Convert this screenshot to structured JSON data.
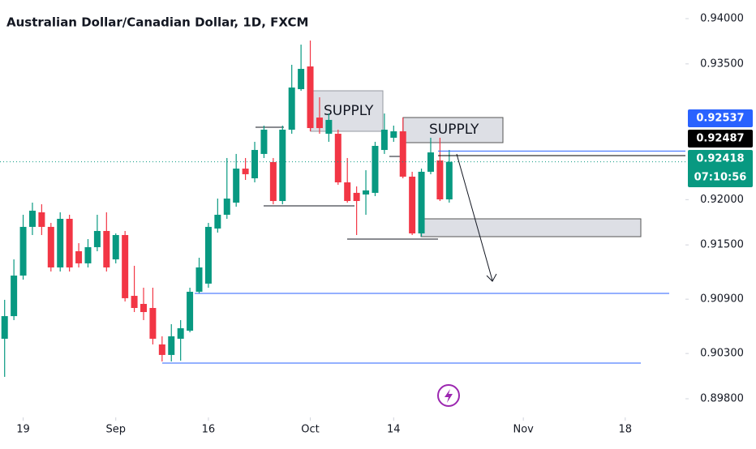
{
  "chart_data": {
    "type": "candlestick",
    "title": "Australian Dollar/Canadian Dollar, 1D, FXCM",
    "up_color": "#089981",
    "down_color": "#f23645",
    "open": [
      0.90463,
      0.90713,
      0.91161,
      0.91699,
      0.9186,
      0.91699,
      0.91251,
      0.91788,
      0.9143,
      0.91296,
      0.91475,
      0.91654,
      0.9134,
      0.91609,
      0.90937,
      0.90848,
      0.90803,
      0.904,
      0.90284,
      0.90463,
      0.90552,
      0.90982,
      0.91072,
      0.91681,
      0.91833,
      0.91967,
      0.92343,
      0.92236,
      0.92505,
      0.92415,
      0.91985,
      0.92773,
      0.93221,
      0.93472,
      0.92907,
      0.92728,
      0.92728,
      0.92191,
      0.92075,
      0.92057,
      0.92075,
      0.92549,
      0.92684,
      0.92755,
      0.92254,
      0.91627,
      0.92308,
      0.92433,
      0.92003
    ],
    "high": [
      0.90893,
      0.9134,
      0.91833,
      0.91967,
      0.91949,
      0.91743,
      0.9186,
      0.91833,
      0.91519,
      0.91564,
      0.91833,
      0.9186,
      0.91627,
      0.91654,
      0.91269,
      0.91027,
      0.91027,
      0.9049,
      0.90624,
      0.90669,
      0.91027,
      0.91358,
      0.91743,
      0.92012,
      0.9246,
      0.92505,
      0.9246,
      0.92639,
      0.92818,
      0.9246,
      0.92818,
      0.9349,
      0.93713,
      0.93758,
      0.93131,
      0.92952,
      0.92773,
      0.9246,
      0.92146,
      0.92325,
      0.92639,
      0.92952,
      0.92818,
      0.92907,
      0.92308,
      0.92343,
      0.92684,
      0.92684,
      0.92549
    ],
    "low": [
      0.90042,
      0.90669,
      0.91116,
      0.91609,
      0.91609,
      0.91206,
      0.91206,
      0.91206,
      0.91251,
      0.91251,
      0.9143,
      0.91206,
      0.91296,
      0.90875,
      0.90758,
      0.90669,
      0.904,
      0.90212,
      0.90212,
      0.90221,
      0.90534,
      0.90964,
      0.91027,
      0.91636,
      0.91788,
      0.91922,
      0.92218,
      0.92191,
      0.9246,
      0.91949,
      0.91949,
      0.92728,
      0.93203,
      0.92755,
      0.92728,
      0.92639,
      0.92164,
      0.91967,
      0.91609,
      0.91833,
      0.92039,
      0.92505,
      0.92639,
      0.92236,
      0.91609,
      0.91591,
      0.92281,
      0.91985,
      0.91967
    ],
    "close": [
      0.90713,
      0.91161,
      0.91699,
      0.91878,
      0.91699,
      0.91251,
      0.91788,
      0.91251,
      0.91296,
      0.91475,
      0.91654,
      0.91251,
      0.91609,
      0.90911,
      0.90803,
      0.90758,
      0.90463,
      0.90284,
      0.9049,
      0.90579,
      0.90982,
      0.91251,
      0.91699,
      0.91833,
      0.92012,
      0.92343,
      0.92281,
      0.92549,
      0.92773,
      0.91985,
      0.92773,
      0.93239,
      0.93445,
      0.92791,
      0.92791,
      0.92881,
      0.92191,
      0.91985,
      0.91985,
      0.92102,
      0.92594,
      0.92773,
      0.92755,
      0.92254,
      0.91627,
      0.92308,
      0.92522,
      0.92003,
      0.92418
    ],
    "xlim": [
      -0.5,
      73.5
    ],
    "xticks": [
      {
        "value": 2,
        "label": "19"
      },
      {
        "value": 12,
        "label": "Sep"
      },
      {
        "value": 22,
        "label": "16"
      },
      {
        "value": 33,
        "label": "Oct"
      },
      {
        "value": 42,
        "label": "14"
      },
      {
        "value": 56,
        "label": "Nov"
      },
      {
        "value": 67,
        "label": "18"
      }
    ],
    "ylim": [
      0.89594,
      0.94206
    ],
    "yticks": [
      {
        "value": 0.94,
        "label": "0.94000"
      },
      {
        "value": 0.935,
        "label": "0.93500"
      },
      {
        "value": 0.92,
        "label": "0.92000"
      },
      {
        "value": 0.915,
        "label": "0.91500"
      },
      {
        "value": 0.909,
        "label": "0.90900"
      },
      {
        "value": 0.903,
        "label": "0.90300"
      },
      {
        "value": 0.898,
        "label": "0.89800"
      }
    ],
    "price_labels": [
      {
        "value": 0.92537,
        "color": "#2962ff"
      },
      {
        "value": 0.92487,
        "color": "#000000"
      },
      {
        "value": 0.92418,
        "color": "#089981",
        "countdown": "07:10:56"
      }
    ],
    "annotations": [
      "SUPPLY",
      "SUPPLY"
    ]
  }
}
